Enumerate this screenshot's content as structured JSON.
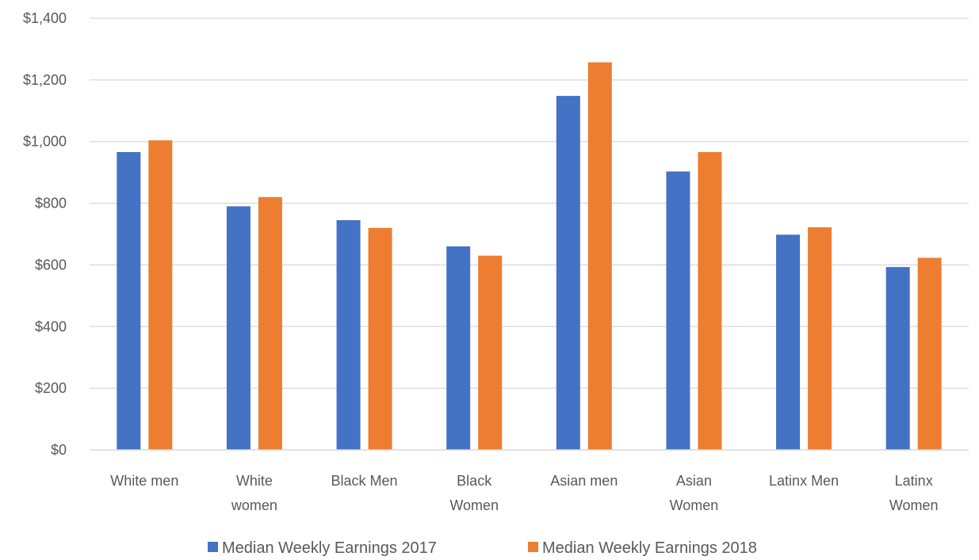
{
  "chart_data": {
    "type": "bar",
    "title": "",
    "xlabel": "",
    "ylabel": "",
    "ylim": [
      0,
      1400
    ],
    "yticks": [
      0,
      200,
      400,
      600,
      800,
      1000,
      1200,
      1400
    ],
    "ytick_labels": [
      "$0",
      "$200",
      "$400",
      "$600",
      "$800",
      "$1,000",
      "$1,200",
      "$1,400"
    ],
    "grid": true,
    "legend_position": "bottom",
    "categories": [
      [
        "White men"
      ],
      [
        "White",
        "women"
      ],
      [
        "Black Men"
      ],
      [
        "Black",
        "Women"
      ],
      [
        "Asian men"
      ],
      [
        "Asian",
        "Women"
      ],
      [
        "Latinx Men"
      ],
      [
        "Latinx",
        "Women"
      ]
    ],
    "series": [
      {
        "name": "Median Weekly Earnings 2017",
        "color": "#4472C4",
        "values": [
          966,
          790,
          745,
          660,
          1148,
          903,
          698,
          593
        ]
      },
      {
        "name": "Median Weekly Earnings 2018",
        "color": "#ED7D31",
        "values": [
          1004,
          820,
          720,
          630,
          1257,
          966,
          722,
          623
        ]
      }
    ]
  }
}
